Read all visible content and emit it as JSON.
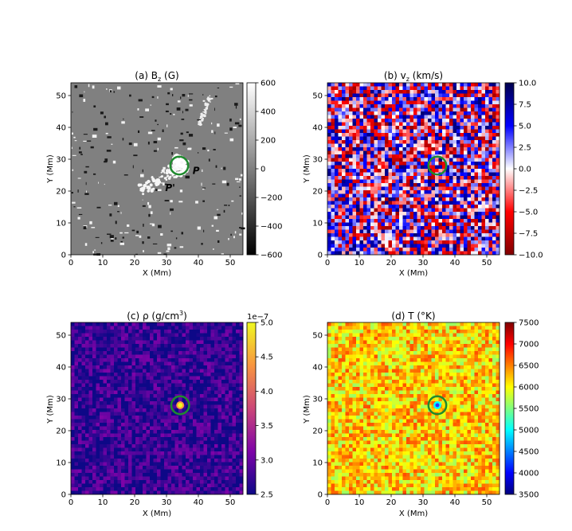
{
  "chart_data": [
    {
      "type": "heatmap",
      "title": "(a) B",
      "title_sub": "z",
      "title_suffix": " (G)",
      "xlabel": "X (Mm)",
      "ylabel": "Y (Mm)",
      "xlim": [
        0,
        54
      ],
      "ylim": [
        0,
        54
      ],
      "xticks": [
        0,
        10,
        20,
        30,
        40,
        50
      ],
      "yticks": [
        0,
        10,
        20,
        30,
        40,
        50
      ],
      "colormap": "gray",
      "colorbar": {
        "min": -600,
        "max": 600,
        "ticks": [
          -600,
          -400,
          -200,
          0,
          200,
          400,
          600
        ],
        "tick_labels": [
          "−600",
          "−400",
          "−200",
          "0",
          "200",
          "400",
          "600"
        ]
      },
      "background_value": 0,
      "circle": {
        "x": 34,
        "y": 28,
        "r": 2.8
      },
      "annotations": [
        {
          "text": "P",
          "x": 38.2,
          "y": 25.4
        },
        {
          "text": "P'",
          "x": 29.6,
          "y": 20
        }
      ]
    },
    {
      "type": "heatmap",
      "title": "(b) v",
      "title_sub": "z",
      "title_suffix": " (km/s)",
      "xlabel": "X (Mm)",
      "ylabel": "Y (Mm)",
      "xlim": [
        0,
        54
      ],
      "ylim": [
        0,
        54
      ],
      "xticks": [
        0,
        10,
        20,
        30,
        40,
        50
      ],
      "yticks": [
        0,
        10,
        20,
        30,
        40,
        50
      ],
      "colormap": "seismic_r",
      "colorbar": {
        "min": -10,
        "max": 10,
        "ticks": [
          -10,
          -7.5,
          -5,
          -2.5,
          0,
          2.5,
          5,
          7.5,
          10
        ],
        "tick_labels": [
          "−10.0",
          "−7.5",
          "−5.0",
          "−2.5",
          "0.0",
          "2.5",
          "5.0",
          "7.5",
          "10.0"
        ]
      },
      "background_value": 0,
      "circle": {
        "x": 34.5,
        "y": 28,
        "r": 2.8
      },
      "annotations": []
    },
    {
      "type": "heatmap",
      "title": "(c) ρ (g/cm",
      "title_sup": "3",
      "title_suffix": ")",
      "xlabel": "X (Mm)",
      "ylabel": "Y (Mm)",
      "xlim": [
        0,
        54
      ],
      "ylim": [
        0,
        54
      ],
      "xticks": [
        0,
        10,
        20,
        30,
        40,
        50
      ],
      "yticks": [
        0,
        10,
        20,
        30,
        40,
        50
      ],
      "colormap": "plasma",
      "colorbar": {
        "min": 2.5,
        "max": 5.0,
        "ticks": [
          2.5,
          3.0,
          3.5,
          4.0,
          4.5,
          5.0
        ],
        "tick_labels": [
          "2.5",
          "3.0",
          "3.5",
          "4.0",
          "4.5",
          "5.0"
        ],
        "offset_text": "1e−7"
      },
      "background_value": 2.7,
      "circle": {
        "x": 34.3,
        "y": 28,
        "r": 2.8
      },
      "annotations": []
    },
    {
      "type": "heatmap",
      "title": "(d) T (°K)",
      "xlabel": "X (Mm)",
      "ylabel": "Y (Mm)",
      "xlim": [
        0,
        54
      ],
      "ylim": [
        0,
        54
      ],
      "xticks": [
        0,
        10,
        20,
        30,
        40,
        50
      ],
      "yticks": [
        0,
        10,
        20,
        30,
        40,
        50
      ],
      "colormap": "jet",
      "colorbar": {
        "min": 3500,
        "max": 7500,
        "ticks": [
          3500,
          4000,
          4500,
          5000,
          5500,
          6000,
          6500,
          7000,
          7500
        ],
        "tick_labels": [
          "3500",
          "4000",
          "4500",
          "5000",
          "5500",
          "6000",
          "6500",
          "7000",
          "7500"
        ]
      },
      "background_value": 6150,
      "circle": {
        "x": 34.5,
        "y": 28,
        "r": 2.8
      },
      "annotations": []
    }
  ],
  "colors": {
    "circle": "#1f8a2e",
    "axis": "#000000",
    "gray_background": "#808080"
  }
}
